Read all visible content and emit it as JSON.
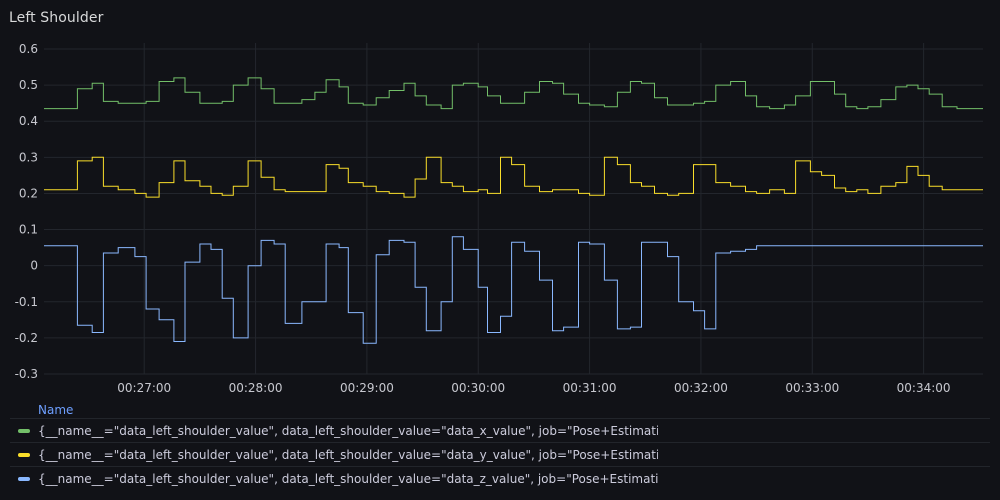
{
  "panel": {
    "title": "Left Shoulder"
  },
  "legend": {
    "header": "Name",
    "items": [
      {
        "label": "{__name__=\"data_left_shoulder_value\", data_left_shoulder_value=\"data_x_value\", job=\"Pose+Estimati...",
        "color": "#73bf69"
      },
      {
        "label": "{__name__=\"data_left_shoulder_value\", data_left_shoulder_value=\"data_y_value\", job=\"Pose+Estimati...",
        "color": "#fade2a"
      },
      {
        "label": "{__name__=\"data_left_shoulder_value\", data_left_shoulder_value=\"data_z_value\", job=\"Pose+Estimati...",
        "color": "#8ab8ff"
      }
    ]
  },
  "chart_data": {
    "type": "line",
    "title": "Left Shoulder",
    "xlabel": "",
    "ylabel": "",
    "ylim": [
      -0.3,
      0.6
    ],
    "yticks": [
      "0.6",
      "0.5",
      "0.4",
      "0.3",
      "0.2",
      "0.1",
      "0",
      "-0.1",
      "-0.2",
      "-0.3"
    ],
    "xlim": [
      "00:26:06",
      "00:34:32"
    ],
    "xticks": [
      "00:27:00",
      "00:28:00",
      "00:29:00",
      "00:30:00",
      "00:31:00",
      "00:32:00",
      "00:33:00",
      "00:34:00"
    ],
    "grid": true,
    "legend_position": "bottom",
    "x": [
      "00:26:06",
      "00:26:17",
      "00:26:24",
      "00:26:32",
      "00:26:38",
      "00:26:46",
      "00:26:55",
      "00:27:01",
      "00:27:08",
      "00:27:16",
      "00:27:22",
      "00:27:30",
      "00:27:36",
      "00:27:42",
      "00:27:48",
      "00:27:56",
      "00:28:03",
      "00:28:10",
      "00:28:16",
      "00:28:25",
      "00:28:32",
      "00:28:38",
      "00:28:45",
      "00:28:50",
      "00:28:58",
      "00:29:05",
      "00:29:12",
      "00:29:20",
      "00:29:26",
      "00:29:32",
      "00:29:40",
      "00:29:46",
      "00:29:52",
      "00:30:00",
      "00:30:05",
      "00:30:12",
      "00:30:18",
      "00:30:25",
      "00:30:33",
      "00:30:40",
      "00:30:46",
      "00:30:54",
      "00:31:00",
      "00:31:08",
      "00:31:15",
      "00:31:22",
      "00:31:28",
      "00:31:35",
      "00:31:42",
      "00:31:48",
      "00:31:56",
      "00:32:02",
      "00:32:08",
      "00:32:16",
      "00:32:24",
      "00:32:30",
      "00:32:37",
      "00:32:45",
      "00:32:51",
      "00:32:59",
      "00:33:05",
      "00:33:12",
      "00:33:18",
      "00:33:24",
      "00:33:30",
      "00:33:37",
      "00:33:45",
      "00:33:51",
      "00:33:57",
      "00:34:03",
      "00:34:10",
      "00:34:18",
      "00:34:32"
    ],
    "series": [
      {
        "name": "{__name__=\"data_left_shoulder_value\", data_left_shoulder_value=\"data_x_value\", job=\"Pose+Estimati...",
        "color": "#73bf69",
        "values": [
          0.435,
          0.435,
          0.49,
          0.505,
          0.455,
          0.45,
          0.45,
          0.455,
          0.51,
          0.52,
          0.48,
          0.45,
          0.45,
          0.455,
          0.5,
          0.52,
          0.49,
          0.45,
          0.45,
          0.46,
          0.48,
          0.515,
          0.495,
          0.45,
          0.445,
          0.465,
          0.485,
          0.505,
          0.47,
          0.445,
          0.435,
          0.5,
          0.505,
          0.495,
          0.47,
          0.45,
          0.45,
          0.48,
          0.51,
          0.505,
          0.475,
          0.45,
          0.445,
          0.44,
          0.48,
          0.51,
          0.505,
          0.465,
          0.445,
          0.445,
          0.45,
          0.455,
          0.5,
          0.51,
          0.47,
          0.44,
          0.435,
          0.445,
          0.47,
          0.51,
          0.51,
          0.475,
          0.44,
          0.435,
          0.44,
          0.46,
          0.495,
          0.5,
          0.49,
          0.475,
          0.44,
          0.435,
          0.435
        ]
      },
      {
        "name": "{__name__=\"data_left_shoulder_value\", data_left_shoulder_value=\"data_y_value\", job=\"Pose+Estimati...",
        "color": "#fade2a",
        "values": [
          0.21,
          0.21,
          0.29,
          0.3,
          0.22,
          0.21,
          0.2,
          0.19,
          0.23,
          0.29,
          0.235,
          0.22,
          0.2,
          0.195,
          0.22,
          0.29,
          0.245,
          0.21,
          0.205,
          0.205,
          0.205,
          0.28,
          0.27,
          0.23,
          0.22,
          0.205,
          0.2,
          0.19,
          0.24,
          0.3,
          0.23,
          0.22,
          0.205,
          0.21,
          0.2,
          0.3,
          0.28,
          0.22,
          0.205,
          0.21,
          0.21,
          0.2,
          0.195,
          0.3,
          0.28,
          0.23,
          0.22,
          0.2,
          0.195,
          0.2,
          0.28,
          0.28,
          0.23,
          0.22,
          0.205,
          0.2,
          0.21,
          0.2,
          0.29,
          0.26,
          0.25,
          0.215,
          0.205,
          0.21,
          0.2,
          0.22,
          0.23,
          0.275,
          0.25,
          0.22,
          0.21,
          0.21,
          0.21
        ]
      },
      {
        "name": "{__name__=\"data_left_shoulder_value\", data_left_shoulder_value=\"data_z_value\", job=\"Pose+Estimati...",
        "color": "#8ab8ff",
        "values": [
          0.055,
          0.055,
          -0.165,
          -0.185,
          0.035,
          0.05,
          0.025,
          -0.12,
          -0.15,
          -0.21,
          0.01,
          0.06,
          0.045,
          -0.09,
          -0.2,
          0,
          0.07,
          0.06,
          -0.16,
          -0.1,
          -0.1,
          0.06,
          0.05,
          -0.13,
          -0.215,
          0.03,
          0.07,
          0.065,
          -0.06,
          -0.18,
          -0.1,
          0.08,
          0.045,
          -0.06,
          -0.185,
          -0.14,
          0.065,
          0.04,
          -0.04,
          -0.18,
          -0.17,
          0.065,
          0.06,
          -0.04,
          -0.175,
          -0.17,
          0.065,
          0.065,
          0.025,
          -0.1,
          -0.125,
          -0.175,
          0.035,
          0.04,
          0.045,
          0.055,
          0.055,
          0.055,
          0.055,
          0.055,
          0.055,
          0.055,
          0.055,
          0.055,
          0.055,
          0.055,
          0.055,
          0.055,
          0.055,
          0.055,
          0.055,
          0.055,
          0.055
        ]
      }
    ]
  }
}
